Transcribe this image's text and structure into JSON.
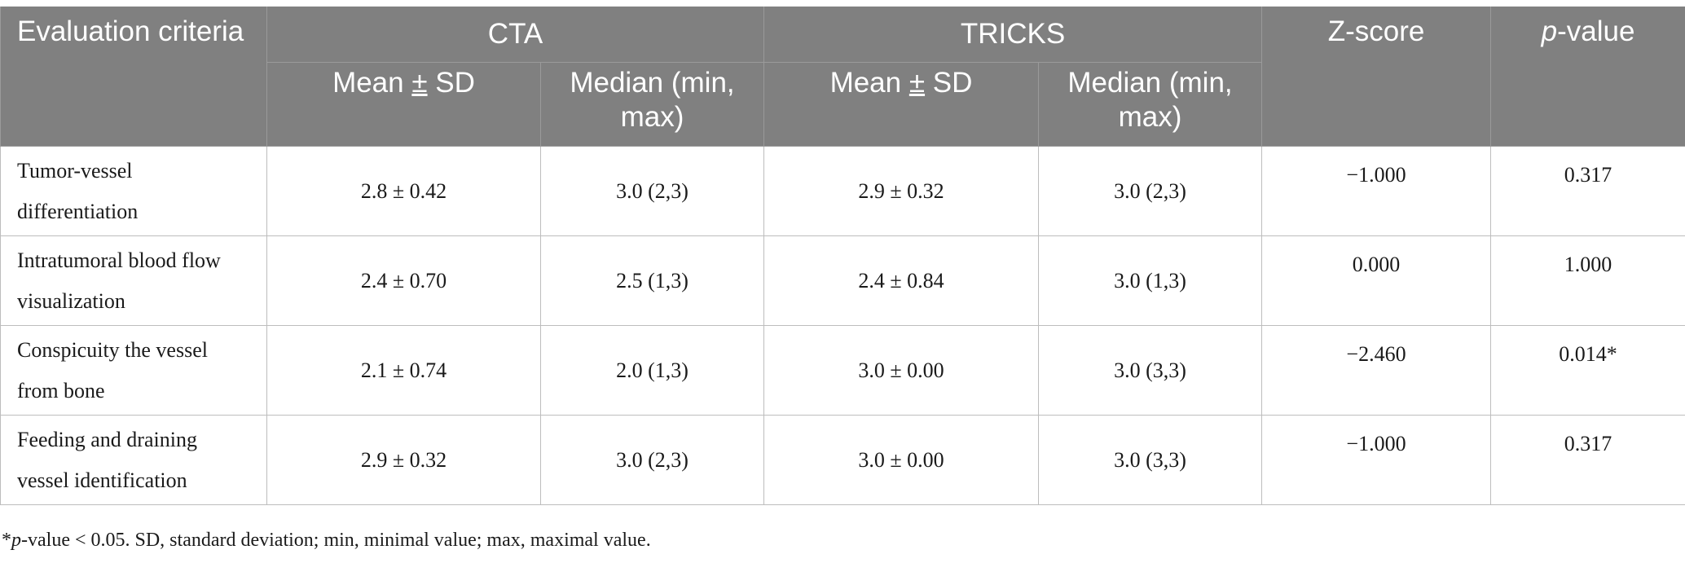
{
  "header": {
    "criteria": "Evaluation criteria",
    "cta": "CTA",
    "tricks": "TRICKS",
    "zscore": "Z-score",
    "pvalue_italic": "p",
    "pvalue_rest": "-value",
    "mean_a": "Mean ",
    "mean_pm": "±",
    "mean_b": " SD",
    "median": "Median (min, max)"
  },
  "rows": [
    {
      "criteria": "Tumor-vessel differentiation",
      "cta_mean": "2.8 ± 0.42",
      "cta_median": "3.0 (2,3)",
      "tricks_mean": "2.9 ± 0.32",
      "tricks_median": "3.0 (2,3)",
      "z": "−1.000",
      "p": "0.317"
    },
    {
      "criteria": "Intratumoral blood flow visualization",
      "cta_mean": "2.4 ± 0.70",
      "cta_median": "2.5 (1,3)",
      "tricks_mean": "2.4 ± 0.84",
      "tricks_median": "3.0 (1,3)",
      "z": "0.000",
      "p": "1.000"
    },
    {
      "criteria": "Conspicuity the vessel from bone",
      "cta_mean": "2.1 ± 0.74",
      "cta_median": "2.0 (1,3)",
      "tricks_mean": "3.0 ± 0.00",
      "tricks_median": "3.0 (3,3)",
      "z": "−2.460",
      "p": "0.014*"
    },
    {
      "criteria": "Feeding and draining vessel identification",
      "cta_mean": "2.9 ± 0.32",
      "cta_median": "3.0 (2,3)",
      "tricks_mean": "3.0 ± 0.00",
      "tricks_median": "3.0 (3,3)",
      "z": "−1.000",
      "p": "0.317"
    }
  ],
  "footnote": {
    "star": "*",
    "p_italic": "p",
    "rest": "-value < 0.05. SD, standard deviation; min, minimal value; max, maximal value."
  }
}
